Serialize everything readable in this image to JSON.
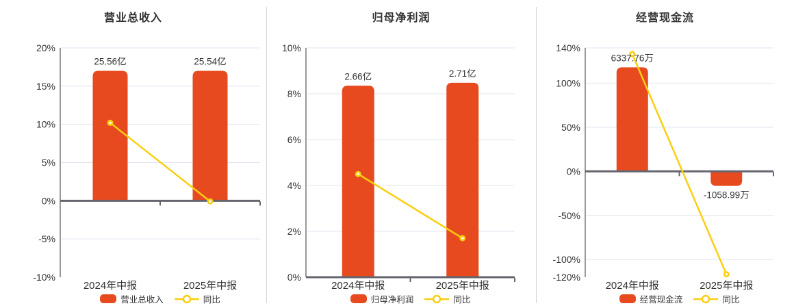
{
  "page": {
    "background": "#ffffff"
  },
  "colors": {
    "bar": "#e64a1e",
    "line": "#fbce10",
    "grid": "#e2e5f0",
    "axis_line": "#999999",
    "zero_line": "#65656f",
    "text": "#333333",
    "divider": "#d5d5d5"
  },
  "chart_data": [
    {
      "type": "bar",
      "title": "营业总收入",
      "categories": [
        "2024年中报",
        "2025年中报"
      ],
      "bars": {
        "name": "营业总收入",
        "values": [
          25.56,
          25.54
        ],
        "unit": "亿",
        "value_labels": [
          "25.56亿",
          "25.54亿"
        ],
        "display_axis_pct": [
          17.0,
          17.0
        ]
      },
      "line": {
        "name": "同比",
        "values_pct": [
          10.2,
          -0.08
        ]
      },
      "y_axis": {
        "min": -10,
        "max": 20,
        "ticks": [
          20,
          15,
          10,
          5,
          0,
          -5,
          -10
        ],
        "tick_labels": [
          "20%",
          "15%",
          "10%",
          "5%",
          "0%",
          "-5%",
          "-10%"
        ],
        "grid": true
      },
      "legend_position": "bottom"
    },
    {
      "type": "bar",
      "title": "归母净利润",
      "categories": [
        "2024年中报",
        "2025年中报"
      ],
      "bars": {
        "name": "归母净利润",
        "values": [
          2.66,
          2.71
        ],
        "unit": "亿",
        "value_labels": [
          "2.66亿",
          "2.71亿"
        ],
        "display_axis_pct": [
          8.35,
          8.48
        ]
      },
      "line": {
        "name": "同比",
        "values_pct": [
          4.5,
          1.7
        ]
      },
      "y_axis": {
        "min": 0,
        "max": 10,
        "ticks": [
          10,
          8,
          6,
          4,
          2,
          0
        ],
        "tick_labels": [
          "10%",
          "8%",
          "6%",
          "4%",
          "2%",
          "0%"
        ],
        "grid": true
      },
      "legend_position": "bottom"
    },
    {
      "type": "bar",
      "title": "经营现金流",
      "categories": [
        "2024年中报",
        "2025年中报"
      ],
      "bars": {
        "name": "经营现金流",
        "values": [
          6337.76,
          -1058.99
        ],
        "unit": "万",
        "value_labels": [
          "6337.76万",
          "-1058.99万"
        ],
        "display_axis_pct": [
          118.0,
          -16.5
        ]
      },
      "line": {
        "name": "同比",
        "values_pct": [
          133,
          -116.7
        ]
      },
      "y_axis": {
        "min": -120,
        "max": 140,
        "ticks": [
          140,
          100,
          50,
          0,
          -50,
          -100,
          -120
        ],
        "tick_labels": [
          "140%",
          "100%",
          "50%",
          "0%",
          "-50%",
          "-100%",
          "-120%"
        ],
        "grid": true
      },
      "legend_position": "bottom"
    }
  ]
}
